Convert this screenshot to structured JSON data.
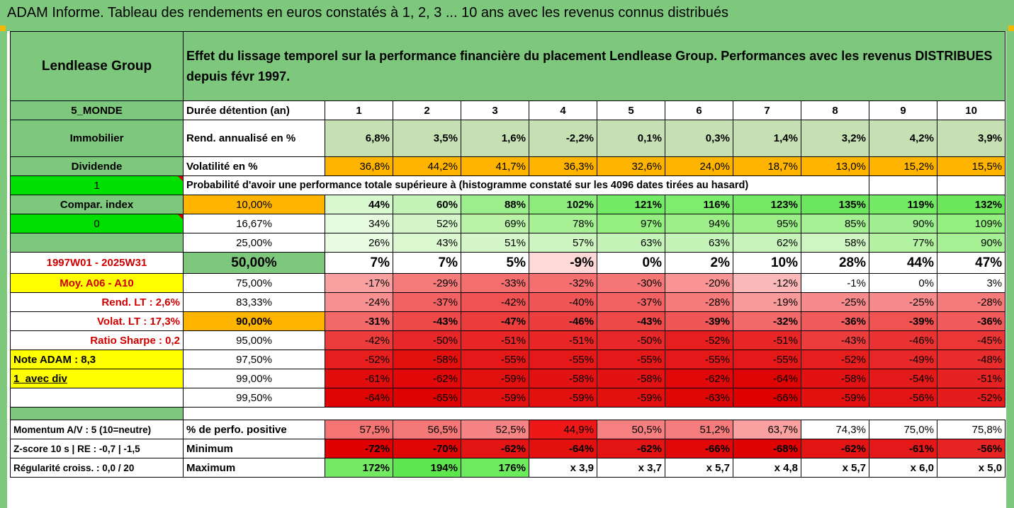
{
  "title": "ADAM Informe. Tableau des rendements en euros constatés à 1, 2, 3 ... 10 ans avec les revenus connus distribués",
  "header": {
    "fund": "Lendlease Group",
    "description": "Effet du lissage temporel sur la performance financière du placement Lendlease Group. Performances avec les revenus DISTRIBUES depuis févr 1997."
  },
  "side": {
    "region": "5_MONDE",
    "sector": "Immobilier",
    "dividend": "Dividende",
    "one": "1",
    "compar": "Compar. index",
    "zero": "0",
    "period": "1997W01 - 2025W31",
    "moy": "Moy. A06 - A10",
    "rend": "Rend. LT :   2,6%",
    "volat": "Volat. LT :   17,3%",
    "sharpe": "Ratio Sharpe :   0,2",
    "note": "Note ADAM : 8,3",
    "avec": "1_avec div",
    "momentum": "Momentum A/V : 5 (10=neutre)",
    "zscore": "Z-score 10 s  |  RE : -0,7  |  -1,5",
    "regularite": "Régularité croiss. : 0,0 / 20"
  },
  "labels": {
    "duree": "Durée détention (an)",
    "rend": "Rend. annualisé en %",
    "vol": "Volatilité en %",
    "prob": "Probabilité d'avoir une performance totale supérieure à (histogramme constaté sur les 4096 dates tirées au hasard)",
    "pos": "% de perfo. positive",
    "min": "Minimum",
    "max": "Maximum"
  },
  "years": [
    "1",
    "2",
    "3",
    "4",
    "5",
    "6",
    "7",
    "8",
    "9",
    "10"
  ],
  "rend": [
    "6,8%",
    "3,5%",
    "1,6%",
    "-2,2%",
    "0,1%",
    "0,3%",
    "1,4%",
    "3,2%",
    "4,2%",
    "3,9%"
  ],
  "vol": [
    "36,8%",
    "44,2%",
    "41,7%",
    "36,3%",
    "32,6%",
    "24,0%",
    "18,7%",
    "13,0%",
    "15,2%",
    "15,5%"
  ],
  "thresholds": [
    {
      "t": "10,00%",
      "v": [
        "44%",
        "60%",
        "88%",
        "102%",
        "121%",
        "116%",
        "123%",
        "135%",
        "119%",
        "132%"
      ]
    },
    {
      "t": "16,67%",
      "v": [
        "34%",
        "52%",
        "69%",
        "78%",
        "97%",
        "94%",
        "95%",
        "85%",
        "90%",
        "109%"
      ]
    },
    {
      "t": "25,00%",
      "v": [
        "26%",
        "43%",
        "51%",
        "57%",
        "63%",
        "63%",
        "62%",
        "58%",
        "77%",
        "90%"
      ]
    },
    {
      "t": "50,00%",
      "v": [
        "7%",
        "7%",
        "5%",
        "-9%",
        "0%",
        "2%",
        "10%",
        "28%",
        "44%",
        "47%"
      ]
    },
    {
      "t": "75,00%",
      "v": [
        "-17%",
        "-29%",
        "-33%",
        "-32%",
        "-30%",
        "-20%",
        "-12%",
        "-1%",
        "0%",
        "3%"
      ]
    },
    {
      "t": "83,33%",
      "v": [
        "-24%",
        "-37%",
        "-42%",
        "-40%",
        "-37%",
        "-28%",
        "-19%",
        "-25%",
        "-25%",
        "-28%"
      ]
    },
    {
      "t": "90,00%",
      "v": [
        "-31%",
        "-43%",
        "-47%",
        "-46%",
        "-43%",
        "-39%",
        "-32%",
        "-36%",
        "-39%",
        "-36%"
      ]
    },
    {
      "t": "95,00%",
      "v": [
        "-42%",
        "-50%",
        "-51%",
        "-51%",
        "-50%",
        "-52%",
        "-51%",
        "-43%",
        "-46%",
        "-45%"
      ]
    },
    {
      "t": "97,50%",
      "v": [
        "-52%",
        "-58%",
        "-55%",
        "-55%",
        "-55%",
        "-55%",
        "-55%",
        "-52%",
        "-49%",
        "-48%"
      ]
    },
    {
      "t": "99,00%",
      "v": [
        "-61%",
        "-62%",
        "-59%",
        "-58%",
        "-58%",
        "-62%",
        "-64%",
        "-58%",
        "-54%",
        "-51%"
      ]
    },
    {
      "t": "99,50%",
      "v": [
        "-64%",
        "-65%",
        "-59%",
        "-59%",
        "-59%",
        "-63%",
        "-66%",
        "-59%",
        "-56%",
        "-52%"
      ]
    }
  ],
  "pos": [
    "57,5%",
    "56,5%",
    "52,5%",
    "44,9%",
    "50,5%",
    "51,2%",
    "63,7%",
    "74,3%",
    "75,0%",
    "75,8%"
  ],
  "min": [
    "-72%",
    "-70%",
    "-62%",
    "-64%",
    "-62%",
    "-66%",
    "-68%",
    "-62%",
    "-61%",
    "-56%"
  ],
  "max": [
    "172%",
    "194%",
    "176%",
    "x 3,9",
    "x 3,7",
    "x 5,7",
    "x 4,8",
    "x 5,7",
    "x 6,0",
    "x 5,0"
  ],
  "colors": {
    "rend": [
      "#c6e0b4",
      "#c6e0b4",
      "#c6e0b4",
      "#c6e0b4",
      "#c6e0b4",
      "#c6e0b4",
      "#c6e0b4",
      "#c6e0b4",
      "#c6e0b4",
      "#c6e0b4"
    ],
    "vol": [
      "#ffb400",
      "#ffb400",
      "#ffb400",
      "#ffb400",
      "#ffb400",
      "#ffb400",
      "#ffb400",
      "#ffb400",
      "#ffb400",
      "#ffb400"
    ],
    "thresholds": [
      [
        "#d8f8d0",
        "#c4f4b8",
        "#9cee8c",
        "#8ced7c",
        "#74eb64",
        "#7ced6c",
        "#74ea64",
        "#6ce65c",
        "#74eb64",
        "#6ce75c"
      ],
      [
        "#e6fae0",
        "#d4f6c8",
        "#baf2a8",
        "#a8f094",
        "#94ee80",
        "#9cef88",
        "#9cef88",
        "#a6f094",
        "#a0ef90",
        "#94ee80"
      ],
      [
        "#eafbe4",
        "#dcf8d0",
        "#d4f6c8",
        "#cdf5c0",
        "#c4f4b8",
        "#c4f4b8",
        "#c6f4ba",
        "#cef5c2",
        "#b2f2a0",
        "#a6f094"
      ],
      [
        "#fff",
        "#fff",
        "#fff",
        "#ffd8d8",
        "#fff",
        "#fff",
        "#fff",
        "#fff",
        "#fff",
        "#fff"
      ],
      [
        "#f9a0a0",
        "#f57a7a",
        "#f46e6e",
        "#f47070",
        "#f57676",
        "#f89494",
        "#fab8b8",
        "#fff",
        "#fff",
        "#fff"
      ],
      [
        "#f79090",
        "#f26262",
        "#f05252",
        "#f05656",
        "#f26262",
        "#f57a7a",
        "#f89a9a",
        "#f78a8a",
        "#f78a8a",
        "#f57a7a"
      ],
      [
        "#f36868",
        "#ee4848",
        "#ec3c3c",
        "#ec3e3e",
        "#ee4848",
        "#f05656",
        "#f36868",
        "#f05a5a",
        "#f05252",
        "#f05a5a"
      ],
      [
        "#ec3c3c",
        "#e82828",
        "#e82626",
        "#e82626",
        "#e82828",
        "#e61e1e",
        "#e82626",
        "#ec3c3c",
        "#ea3232",
        "#ec3636"
      ],
      [
        "#e61e1e",
        "#e31010",
        "#e41818",
        "#e41818",
        "#e41818",
        "#e41818",
        "#e41818",
        "#e61e1e",
        "#e82828",
        "#e82c2c"
      ],
      [
        "#e10c0c",
        "#e00808",
        "#e31010",
        "#e31212",
        "#e31212",
        "#e00808",
        "#df0404",
        "#e31212",
        "#e41a1a",
        "#e62222"
      ],
      [
        "#df0404",
        "#de0202",
        "#e31010",
        "#e31010",
        "#e31010",
        "#df0606",
        "#de0000",
        "#e31010",
        "#e31414",
        "#e41c1c"
      ]
    ],
    "pos": [
      "#f57474",
      "#f57878",
      "#f68484",
      "#ee1818",
      "#f68080",
      "#f57c7c",
      "#f9a0a0",
      "#fff",
      "#fff",
      "#fff"
    ],
    "min": [
      "#de0000",
      "#df0606",
      "#e31414",
      "#e31010",
      "#e31414",
      "#e00808",
      "#de0202",
      "#e31414",
      "#e41818",
      "#e62424"
    ],
    "max": [
      "#74ea64",
      "#5ee64e",
      "#6eea5e",
      "#fff",
      "#fff",
      "#fff",
      "#fff",
      "#fff",
      "#fff",
      "#fff"
    ]
  }
}
